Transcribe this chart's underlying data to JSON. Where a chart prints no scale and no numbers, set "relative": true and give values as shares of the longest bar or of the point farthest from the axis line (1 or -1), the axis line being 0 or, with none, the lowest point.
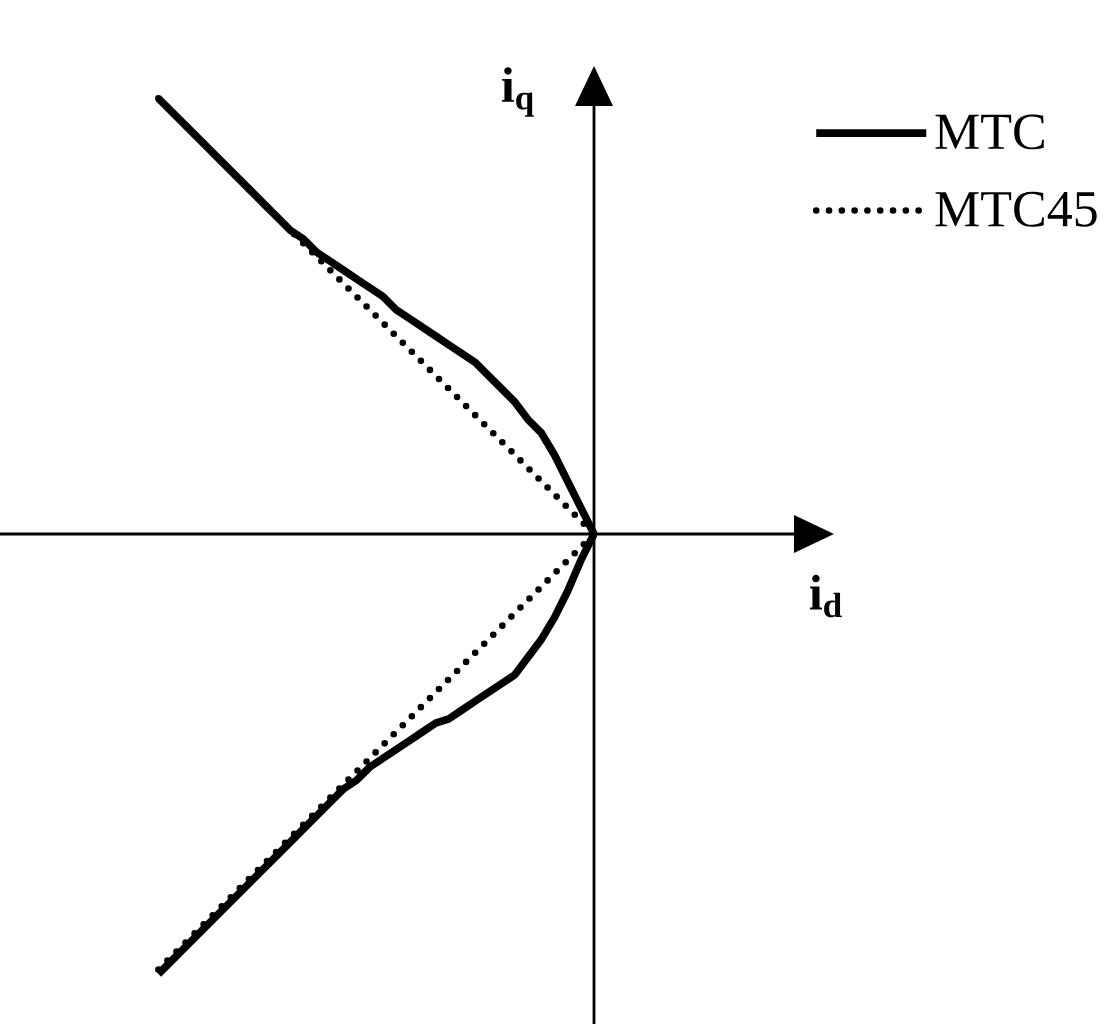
{
  "chart_data": {
    "type": "line",
    "relative": true,
    "xlabel": "i$_{d}$",
    "ylabel": "i$_{q}$",
    "legend": "top right",
    "categories": [
      null,
      null,
      null,
      null,
      null,
      null,
      null,
      null,
      null,
      null,
      null,
      null,
      null,
      null,
      null,
      null,
      null,
      null,
      null,
      null,
      null,
      null,
      null,
      null,
      null,
      null,
      null,
      null,
      null,
      null,
      null,
      null,
      null,
      null
    ],
    "series": [
      {
        "name": "MTC",
        "color": "#000000",
        "line_style": "solid",
        "values": [
          0.99,
          0.96,
          0.93,
          0.9,
          0.87,
          0.84,
          0.81,
          0.78,
          0.75,
          0.72,
          0.69,
          0.67,
          0.64,
          0.62,
          0.6,
          0.58,
          0.56,
          0.54,
          0.51,
          0.49,
          0.47,
          0.45,
          0.43,
          0.41,
          0.39,
          0.36,
          0.33,
          0.3,
          0.26,
          0.23,
          0.18,
          0.12,
          0.06,
          0
        ]
      },
      {
        "name": "MTC45",
        "color": "#000000",
        "line_style": "dotted",
        "values": [
          0.99,
          0.96,
          0.93,
          0.9,
          0.87,
          0.84,
          0.81,
          0.78,
          0.75,
          0.72,
          0.69,
          0.66,
          0.63,
          0.6,
          0.57,
          0.54,
          0.51,
          0.48,
          0.45,
          0.42,
          0.39,
          0.36,
          0.33,
          0.3,
          0.27,
          0.24,
          0.21,
          0.18,
          0.15,
          0.12,
          0.09,
          0.06,
          0.03,
          0
        ]
      },
      {
        "color": "#000000",
        "line_style": "solid",
        "values": [
          -1,
          -0.97,
          -0.94,
          -0.91,
          -0.88,
          -0.85,
          -0.82,
          -0.79,
          -0.76,
          -0.73,
          -0.7,
          -0.67,
          -0.64,
          -0.61,
          -0.58,
          -0.56,
          -0.53,
          -0.51,
          -0.49,
          -0.47,
          -0.45,
          -0.43,
          -0.42,
          -0.4,
          -0.38,
          -0.36,
          -0.34,
          -0.32,
          -0.28,
          -0.24,
          -0.19,
          -0.13,
          -0.06,
          0
        ]
      },
      {
        "color": "#000000",
        "line_style": "dotted",
        "values": [
          -0.99,
          -0.96,
          -0.93,
          -0.9,
          -0.87,
          -0.84,
          -0.81,
          -0.78,
          -0.75,
          -0.72,
          -0.69,
          -0.66,
          -0.63,
          -0.6,
          -0.57,
          -0.54,
          -0.51,
          -0.48,
          -0.45,
          -0.42,
          -0.39,
          -0.36,
          -0.33,
          -0.3,
          -0.27,
          -0.24,
          -0.21,
          -0.18,
          -0.15,
          -0.12,
          -0.09,
          -0.06,
          -0.03,
          0
        ]
      }
    ]
  }
}
